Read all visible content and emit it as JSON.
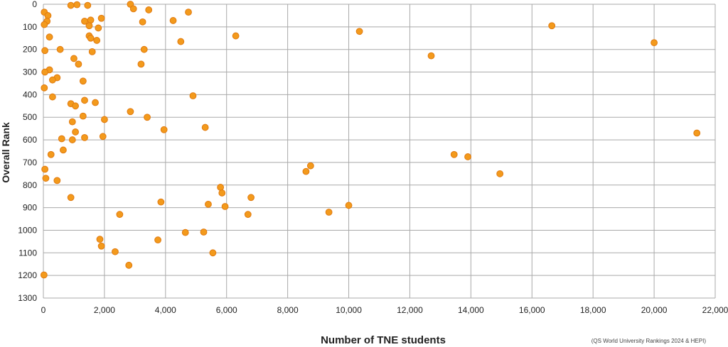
{
  "chart_data": {
    "type": "scatter",
    "title": "",
    "xlabel": "Number of TNE students",
    "ylabel": "Overall Rank",
    "source": "(QS World University Rankings 2024 & HEPI)",
    "xlim": [
      0,
      22000
    ],
    "ylim": [
      0,
      1300
    ],
    "y_inverted": true,
    "x_ticks": [
      "0",
      "2,000",
      "4,000",
      "6,000",
      "8,000",
      "10,000",
      "12,000",
      "14,000",
      "16,000",
      "18,000",
      "20,000",
      "22,000"
    ],
    "y_ticks": [
      "0",
      "100",
      "200",
      "300",
      "400",
      "500",
      "600",
      "700",
      "800",
      "900",
      "1000",
      "1100",
      "1200",
      "1300"
    ],
    "grid": true,
    "legend": "none",
    "marker_color": "#f39a1c",
    "marker_edge": "#e07a10",
    "grid_color": "#a9a9a9",
    "points": [
      {
        "x": 2850,
        "y": 0
      },
      {
        "x": 1100,
        "y": 2
      },
      {
        "x": 900,
        "y": 5
      },
      {
        "x": 1450,
        "y": 5
      },
      {
        "x": 2950,
        "y": 20
      },
      {
        "x": 3450,
        "y": 25
      },
      {
        "x": 4750,
        "y": 35
      },
      {
        "x": 30,
        "y": 35
      },
      {
        "x": 150,
        "y": 50
      },
      {
        "x": 1900,
        "y": 62
      },
      {
        "x": 120,
        "y": 75
      },
      {
        "x": 1350,
        "y": 75
      },
      {
        "x": 1550,
        "y": 70
      },
      {
        "x": 3250,
        "y": 78
      },
      {
        "x": 4250,
        "y": 72
      },
      {
        "x": 30,
        "y": 90
      },
      {
        "x": 1500,
        "y": 95
      },
      {
        "x": 1800,
        "y": 105
      },
      {
        "x": 200,
        "y": 145
      },
      {
        "x": 1500,
        "y": 140
      },
      {
        "x": 1550,
        "y": 150
      },
      {
        "x": 1750,
        "y": 160
      },
      {
        "x": 4500,
        "y": 165
      },
      {
        "x": 6300,
        "y": 140
      },
      {
        "x": 10350,
        "y": 120
      },
      {
        "x": 16650,
        "y": 95
      },
      {
        "x": 20000,
        "y": 170
      },
      {
        "x": 50,
        "y": 205
      },
      {
        "x": 550,
        "y": 200
      },
      {
        "x": 1600,
        "y": 210
      },
      {
        "x": 3300,
        "y": 200
      },
      {
        "x": 12700,
        "y": 228
      },
      {
        "x": 1000,
        "y": 240
      },
      {
        "x": 1150,
        "y": 265
      },
      {
        "x": 3200,
        "y": 265
      },
      {
        "x": 200,
        "y": 290
      },
      {
        "x": 50,
        "y": 300
      },
      {
        "x": 450,
        "y": 325
      },
      {
        "x": 300,
        "y": 335
      },
      {
        "x": 1300,
        "y": 340
      },
      {
        "x": 30,
        "y": 370
      },
      {
        "x": 4900,
        "y": 405
      },
      {
        "x": 300,
        "y": 410
      },
      {
        "x": 1350,
        "y": 425
      },
      {
        "x": 1700,
        "y": 435
      },
      {
        "x": 900,
        "y": 440
      },
      {
        "x": 1050,
        "y": 450
      },
      {
        "x": 2850,
        "y": 475
      },
      {
        "x": 1300,
        "y": 495
      },
      {
        "x": 3400,
        "y": 500
      },
      {
        "x": 2000,
        "y": 510
      },
      {
        "x": 950,
        "y": 520
      },
      {
        "x": 5300,
        "y": 545
      },
      {
        "x": 3950,
        "y": 555
      },
      {
        "x": 1050,
        "y": 565
      },
      {
        "x": 21400,
        "y": 570
      },
      {
        "x": 1950,
        "y": 585
      },
      {
        "x": 1350,
        "y": 590
      },
      {
        "x": 600,
        "y": 595
      },
      {
        "x": 950,
        "y": 600
      },
      {
        "x": 650,
        "y": 645
      },
      {
        "x": 250,
        "y": 665
      },
      {
        "x": 13450,
        "y": 665
      },
      {
        "x": 13900,
        "y": 675
      },
      {
        "x": 8750,
        "y": 715
      },
      {
        "x": 50,
        "y": 730
      },
      {
        "x": 8600,
        "y": 740
      },
      {
        "x": 14950,
        "y": 750
      },
      {
        "x": 80,
        "y": 770
      },
      {
        "x": 450,
        "y": 780
      },
      {
        "x": 5800,
        "y": 810
      },
      {
        "x": 5850,
        "y": 835
      },
      {
        "x": 6800,
        "y": 855
      },
      {
        "x": 900,
        "y": 855
      },
      {
        "x": 3850,
        "y": 875
      },
      {
        "x": 5400,
        "y": 885
      },
      {
        "x": 5950,
        "y": 895
      },
      {
        "x": 10000,
        "y": 890
      },
      {
        "x": 9350,
        "y": 920
      },
      {
        "x": 6700,
        "y": 930
      },
      {
        "x": 2500,
        "y": 930
      },
      {
        "x": 4650,
        "y": 1010
      },
      {
        "x": 5250,
        "y": 1008
      },
      {
        "x": 1850,
        "y": 1040
      },
      {
        "x": 3750,
        "y": 1043
      },
      {
        "x": 1900,
        "y": 1070
      },
      {
        "x": 2350,
        "y": 1095
      },
      {
        "x": 5550,
        "y": 1100
      },
      {
        "x": 2800,
        "y": 1155
      },
      {
        "x": 20,
        "y": 1198
      }
    ]
  }
}
